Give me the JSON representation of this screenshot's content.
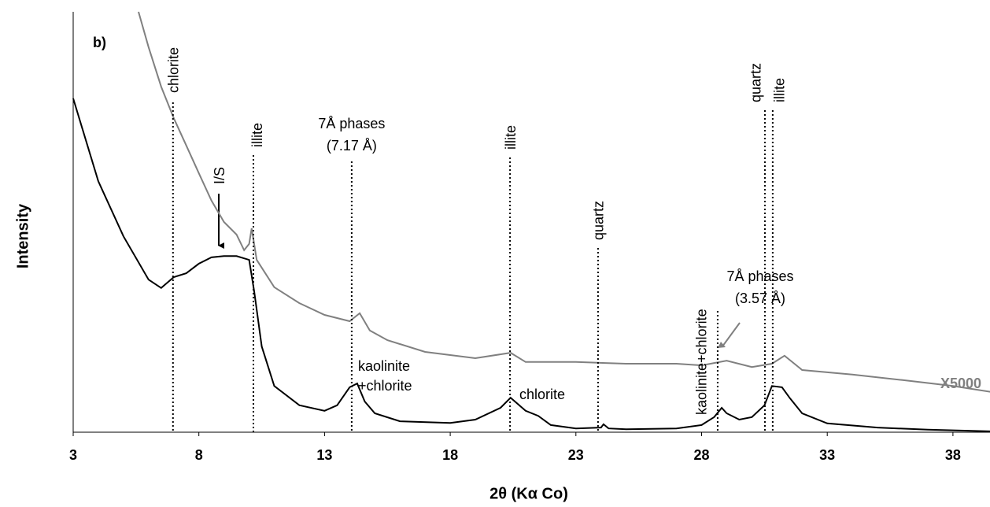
{
  "chart_data": {
    "type": "line",
    "x_label": "2θ (Kα Co)",
    "y_label": "Intensity",
    "xlim": [
      3,
      39.5
    ],
    "xticks": [
      3,
      8,
      13,
      18,
      23,
      28,
      33,
      38
    ],
    "ylim": [
      0,
      100
    ],
    "series": [
      {
        "color": "#000000",
        "x": [
          3,
          4,
          5,
          6,
          6.5,
          7,
          7.5,
          8,
          8.5,
          9,
          9.5,
          10,
          10.2,
          10.5,
          11,
          12,
          13,
          13.5,
          14,
          14.3,
          14.6,
          15,
          16,
          18,
          19,
          20,
          20.4,
          21,
          21.5,
          22,
          23,
          24,
          24.1,
          24.3,
          25,
          27,
          28,
          28.5,
          28.8,
          29,
          29.5,
          30,
          30.5,
          30.8,
          31.2,
          31.5,
          32,
          33,
          35,
          37,
          39.5
        ],
        "values": [
          79.4,
          59.7,
          46.6,
          36.3,
          34.3,
          36.9,
          37.8,
          40.1,
          41.6,
          41.9,
          41.9,
          41,
          33.5,
          20.4,
          11,
          6.4,
          5.1,
          6.4,
          10.7,
          11.6,
          7.3,
          4.5,
          2.6,
          2.2,
          3,
          5.8,
          8.2,
          5.1,
          3.9,
          1.7,
          0.9,
          1.1,
          1.9,
          0.9,
          0.7,
          0.9,
          1.7,
          3.6,
          5.8,
          4.5,
          3,
          3.6,
          6.4,
          11,
          10.7,
          8.2,
          4.5,
          2.1,
          1.1,
          0.6,
          0.2
        ]
      },
      {
        "name": "X5000",
        "color": "#808080",
        "x": [
          5.6,
          6,
          6.5,
          7,
          7.5,
          8,
          8.5,
          9,
          9.5,
          9.8,
          10,
          10.1,
          10.3,
          11,
          12,
          13,
          14,
          14.4,
          14.8,
          15.5,
          17,
          19,
          20.4,
          21,
          23,
          25,
          27,
          28,
          29,
          30,
          30.8,
          31.3,
          32,
          34,
          36,
          38,
          39.5
        ],
        "values": [
          100,
          91.6,
          82.2,
          74.7,
          68.2,
          61.6,
          55.1,
          50,
          47,
          43.3,
          44.8,
          48.5,
          41,
          34.5,
          30.7,
          27.9,
          26.4,
          28.3,
          24.2,
          21.9,
          19.1,
          17.6,
          18.9,
          16.7,
          16.7,
          16.3,
          16.3,
          15.9,
          17,
          15.5,
          16.3,
          18.2,
          14.8,
          13.7,
          12.4,
          11,
          9.6
        ]
      }
    ],
    "markers": [
      {
        "label": "chlorite",
        "x": 6.97
      },
      {
        "label": "illite",
        "x": 10.17
      },
      {
        "label": [
          "7Å phases",
          "(7.17 Å)"
        ],
        "x": 14.08
      },
      {
        "label": "illite",
        "x": 20.38
      },
      {
        "label": "quartz",
        "x": 23.88
      },
      {
        "label": "kaolinite+chlorite",
        "x": 28.64
      },
      {
        "label": "quartz",
        "x": 30.52
      },
      {
        "label": "illite",
        "x": 30.83
      }
    ],
    "notes": [
      "b)",
      "I/S",
      [
        "kaolinite",
        "+chlorite"
      ],
      "chlorite",
      [
        "7Å phases",
        "(3.57 Å)"
      ]
    ]
  }
}
